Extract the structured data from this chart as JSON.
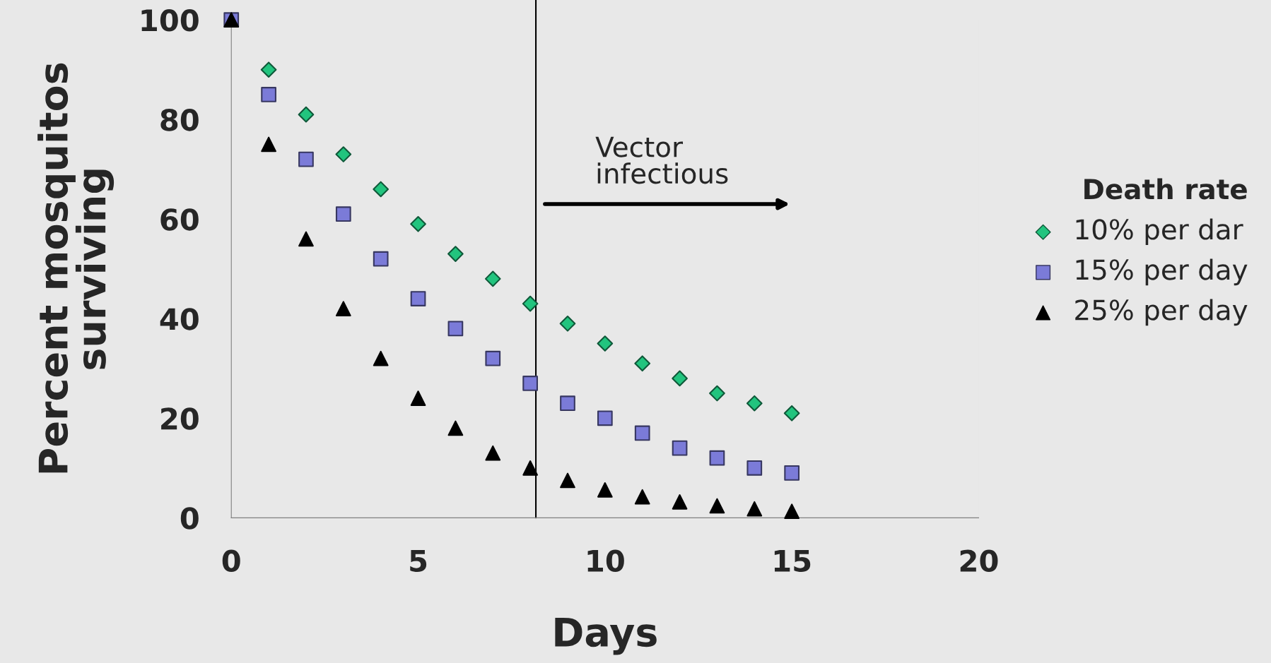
{
  "chart_data": {
    "type": "scatter",
    "xlabel": "Days",
    "ylabel": "Percent mosquitos surviving",
    "legend_title": "Death rate",
    "x": [
      0,
      1,
      2,
      3,
      4,
      5,
      6,
      7,
      8,
      9,
      10,
      11,
      12,
      13,
      14,
      15
    ],
    "series": [
      {
        "name": "10% per dar",
        "color": "#22c47e",
        "marker": "diamond",
        "values": [
          null,
          90,
          81,
          73,
          66,
          59,
          53,
          48,
          43,
          39,
          35,
          31,
          28,
          25,
          23,
          21
        ]
      },
      {
        "name": "15% per day",
        "color": "#7b7bd8",
        "marker": "square",
        "values": [
          100,
          85,
          72,
          61,
          52,
          44,
          38,
          32,
          27,
          23,
          20,
          17,
          14,
          12,
          10,
          9
        ]
      },
      {
        "name": "25% per day",
        "color": "#000000",
        "marker": "triangle",
        "values": [
          100,
          75,
          56,
          42,
          32,
          24,
          18,
          13,
          10,
          7.5,
          5.6,
          4.2,
          3.2,
          2.4,
          1.8,
          1.3
        ]
      }
    ],
    "xlim": [
      0,
      20
    ],
    "xticks": [
      0,
      5,
      10,
      15,
      20
    ],
    "ylim": [
      0,
      100
    ],
    "yticks": [
      0,
      20,
      40,
      60,
      80,
      100
    ],
    "ref_lines": [
      {
        "axis": "x",
        "value": 8.15,
        "color": "#000000",
        "line_style": "solid"
      }
    ],
    "annotations": [
      "Vector infectious"
    ],
    "grid": false,
    "legend": "right"
  }
}
